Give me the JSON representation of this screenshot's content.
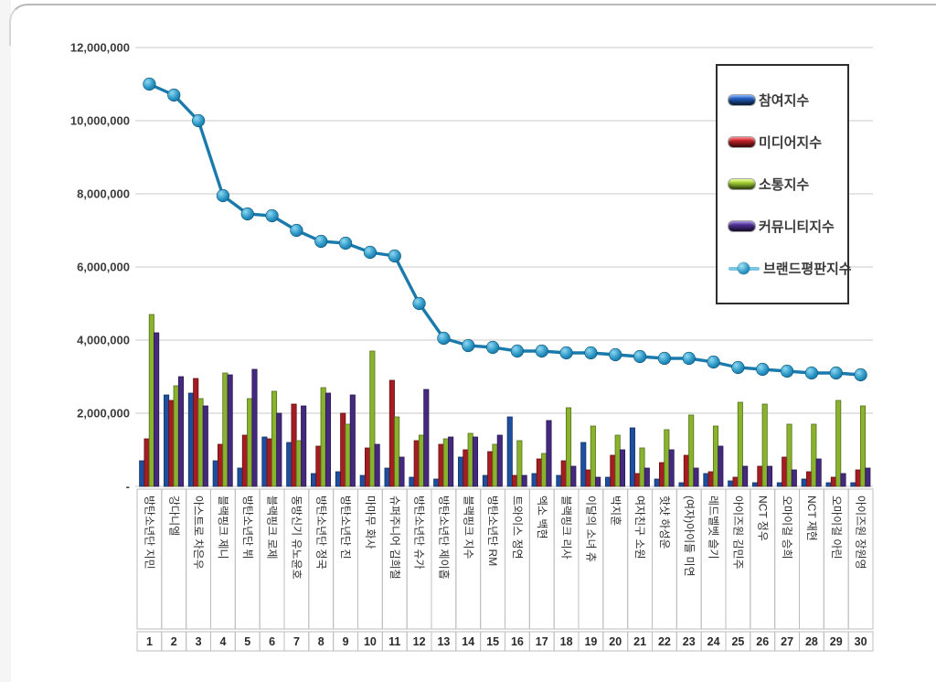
{
  "chart_data": {
    "type": "bar+line",
    "title": "",
    "description": "Korean idol brand reputation ranking chart (values per member, rank 1-30)",
    "categories": [
      "방탄소년단 지민",
      "강다니엘",
      "아스트로 차은우",
      "블랙핑크 제니",
      "방탄소년단 뷔",
      "블랙핑크 로제",
      "동방신기 유노윤호",
      "방탄소년단 정국",
      "방탄소년단 진",
      "마마무 화사",
      "슈퍼주니어 김희철",
      "방탄소년단 슈가",
      "방탄소년단 제이홉",
      "블랙핑크 지수",
      "방탄소년단 RM",
      "트와이스 정연",
      "엑소 백현",
      "블랙핑크 리사",
      "이달의 소녀 츄",
      "박지훈",
      "여자친구 소원",
      "핫샷 하성운",
      "(여자)아이들 미연",
      "레드벨벳 슬기",
      "아이즈원 김민주",
      "NCT 정우",
      "오마이걸 승희",
      "NCT 재현",
      "오마이걸 아린",
      "아이즈원 장원영"
    ],
    "ranks": [
      "1",
      "2",
      "3",
      "4",
      "5",
      "6",
      "7",
      "8",
      "9",
      "10",
      "11",
      "12",
      "13",
      "14",
      "15",
      "16",
      "17",
      "18",
      "19",
      "20",
      "21",
      "22",
      "23",
      "24",
      "25",
      "26",
      "27",
      "28",
      "29",
      "30"
    ],
    "series": [
      {
        "name": "참여지수",
        "type": "bar",
        "color": "#1d4f9e",
        "values": [
          700000,
          2500000,
          2550000,
          700000,
          500000,
          1350000,
          1200000,
          350000,
          400000,
          300000,
          500000,
          250000,
          200000,
          800000,
          300000,
          1900000,
          350000,
          300000,
          1200000,
          250000,
          1600000,
          200000,
          100000,
          350000,
          150000,
          100000,
          100000,
          200000,
          100000,
          100000
        ]
      },
      {
        "name": "미디어지수",
        "type": "bar",
        "color": "#a51d22",
        "values": [
          1300000,
          2350000,
          2950000,
          1150000,
          1400000,
          1300000,
          2250000,
          1100000,
          2000000,
          1050000,
          2900000,
          1250000,
          1150000,
          1000000,
          950000,
          300000,
          750000,
          700000,
          450000,
          850000,
          350000,
          650000,
          850000,
          400000,
          250000,
          550000,
          800000,
          400000,
          250000,
          450000
        ]
      },
      {
        "name": "소통지수",
        "type": "bar",
        "color": "#8ab32d",
        "values": [
          4700000,
          2750000,
          2400000,
          3100000,
          2400000,
          2600000,
          1250000,
          2700000,
          1700000,
          3700000,
          1900000,
          1400000,
          1300000,
          1450000,
          1150000,
          1250000,
          900000,
          2150000,
          1650000,
          1400000,
          1050000,
          1550000,
          1950000,
          1650000,
          2300000,
          2250000,
          1700000,
          1700000,
          2350000,
          2200000
        ]
      },
      {
        "name": "커뮤니티지수",
        "type": "bar",
        "color": "#44297f",
        "values": [
          4200000,
          3000000,
          2200000,
          3050000,
          3200000,
          2000000,
          2200000,
          2550000,
          2500000,
          1150000,
          800000,
          2650000,
          1350000,
          1350000,
          1400000,
          300000,
          1800000,
          550000,
          250000,
          1000000,
          500000,
          1000000,
          500000,
          1100000,
          550000,
          550000,
          450000,
          750000,
          350000,
          500000
        ]
      },
      {
        "name": "브랜드평판지수",
        "type": "line",
        "color": "#1a7aab",
        "values": [
          11000000,
          10700000,
          10000000,
          7950000,
          7450000,
          7400000,
          7000000,
          6700000,
          6650000,
          6400000,
          6300000,
          5000000,
          4050000,
          3850000,
          3800000,
          3700000,
          3700000,
          3650000,
          3650000,
          3600000,
          3550000,
          3500000,
          3500000,
          3400000,
          3250000,
          3200000,
          3150000,
          3100000,
          3100000,
          3050000
        ]
      }
    ],
    "ylim": [
      0,
      12000000
    ],
    "ytick_interval": 2000000,
    "ytick_labels": [
      "-",
      "2,000,000",
      "4,000,000",
      "6,000,000",
      "8,000,000",
      "10,000,000",
      "12,000,000"
    ],
    "grid": true,
    "legend_position": "top-right",
    "colors": {
      "gridline": "#c9c9c9",
      "axis_text": "#3c3c3c",
      "cell_border": "#bcbcbc",
      "label_text": "#2e2e2e",
      "line_marker_light": "#8ed8f2",
      "line_marker_dark": "#0d6493"
    }
  }
}
